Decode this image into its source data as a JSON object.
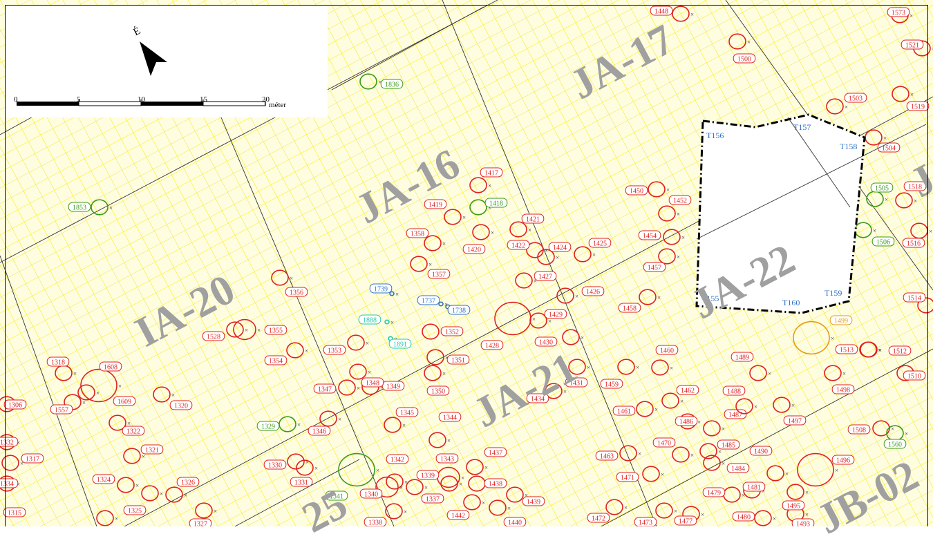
{
  "map": {
    "north_label": "É",
    "scale": {
      "ticks": [
        "0",
        "5",
        "10",
        "15",
        "20"
      ],
      "unit": "méter"
    },
    "sectors": [
      "JA-16",
      "JA-17",
      "JA-21",
      "JA-22",
      "IA-20",
      "JB-02",
      "J",
      "25"
    ],
    "trench_labels": [
      "T155",
      "T156",
      "T157",
      "T158",
      "T159",
      "T160"
    ],
    "colors": {
      "grid": "#f2ea1c",
      "survey_lines": "#333333",
      "feature_red": "#e02020",
      "feature_green": "#3a9a1a",
      "feature_orange": "#e59a10",
      "feature_blue": "#2f72c8",
      "feature_cyan": "#20c9b0",
      "trench_outline": "#000000",
      "background": "#fffde0"
    },
    "features_red": [
      "1448",
      "1573",
      "1500",
      "1521",
      "1503",
      "1519",
      "1504",
      "1417",
      "1419",
      "1421",
      "1358",
      "1422",
      "1424",
      "1425",
      "1420",
      "1357",
      "1427",
      "1426",
      "1429",
      "1430",
      "1428",
      "1356",
      "1355",
      "1528",
      "1353",
      "1354",
      "1352",
      "1351",
      "1350",
      "1349",
      "1348",
      "1347",
      "1345",
      "1344",
      "1343",
      "1342",
      "1339",
      "1346",
      "1330",
      "1331",
      "1340",
      "1337",
      "1338",
      "1437",
      "1438",
      "1439",
      "1440",
      "1442",
      "1431",
      "1434",
      "1459",
      "1460",
      "1450",
      "1452",
      "1454",
      "1457",
      "1458",
      "1461",
      "1462",
      "1463",
      "1470",
      "1471",
      "1472",
      "1473",
      "1477",
      "1479",
      "1480",
      "1481",
      "1484",
      "1485",
      "1486",
      "1487",
      "1488",
      "1489",
      "1490",
      "1493",
      "1495",
      "1496",
      "1497",
      "1498",
      "1508",
      "1510",
      "1512",
      "1513",
      "1514",
      "1516",
      "1518",
      "1318",
      "1608",
      "1609",
      "1557",
      "1320",
      "1322",
      "1321",
      "1317",
      "1324",
      "1325",
      "1326",
      "1327",
      "1315",
      "1306",
      "1332",
      "1334"
    ],
    "features_green": [
      "1836",
      "1853",
      "1418",
      "1505",
      "1506",
      "1329",
      "1341",
      "1560"
    ],
    "features_orange": [
      "1499"
    ],
    "features_blue": [
      "1739",
      "1737",
      "1738"
    ],
    "features_cyan": [
      "1888",
      "1891"
    ]
  }
}
